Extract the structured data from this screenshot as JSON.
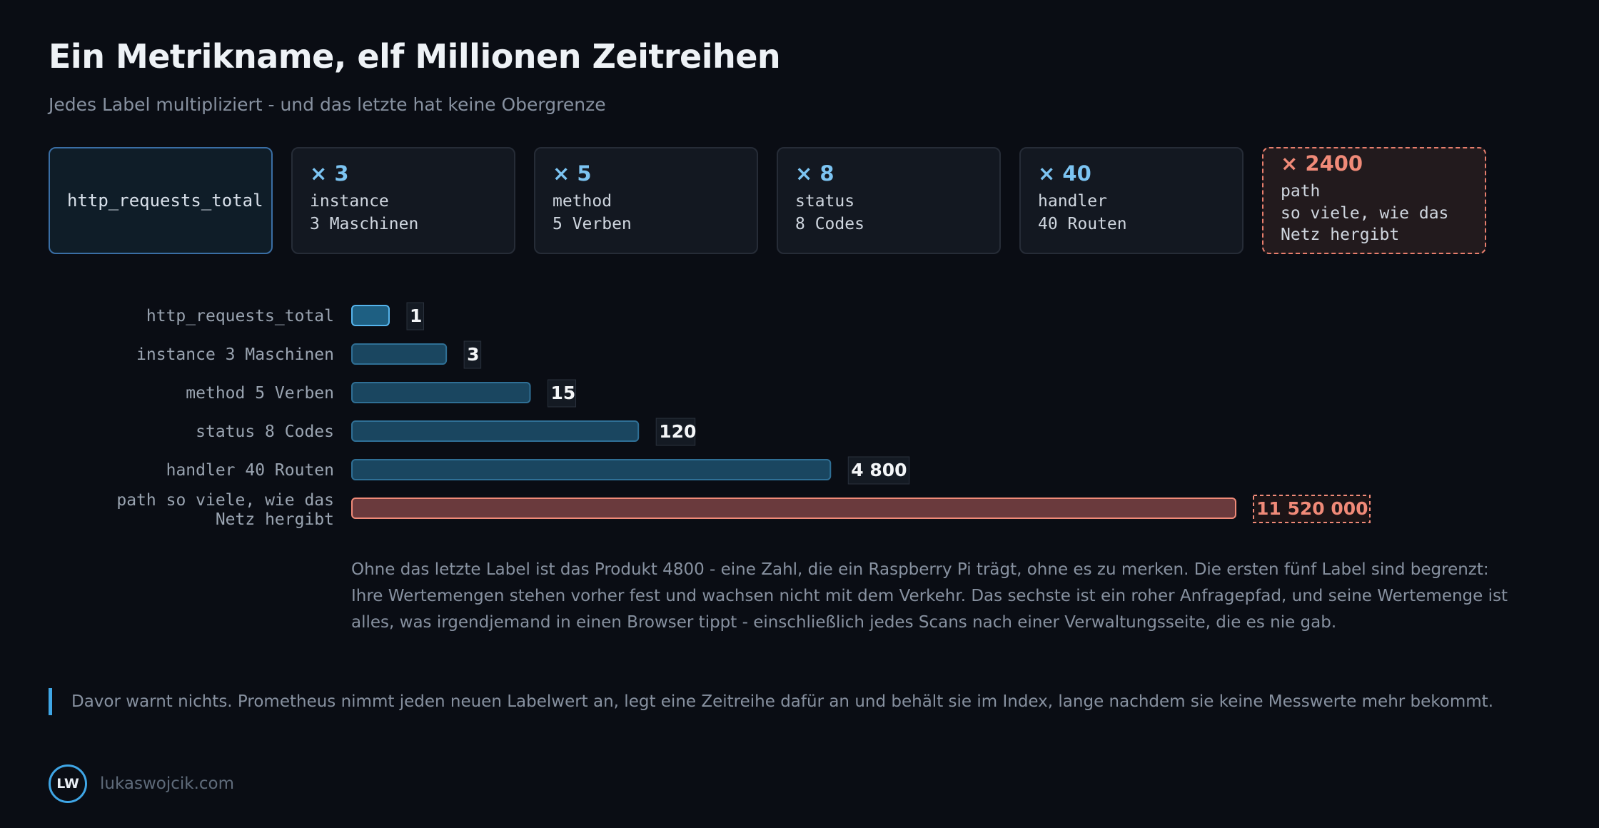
{
  "header": {
    "title": "Ein Metrikname, elf Millionen Zeitreihen",
    "subtitle": "Jedes Label multipliziert - und das letzte hat keine Obergrenze"
  },
  "cards": {
    "metric": {
      "name": "http_requests_total"
    },
    "labels": [
      {
        "multiplier": "× 3",
        "label": "instance",
        "desc": "3 Maschinen"
      },
      {
        "multiplier": "× 5",
        "label": "method",
        "desc": "5 Verben"
      },
      {
        "multiplier": "× 8",
        "label": "status",
        "desc": "8 Codes"
      },
      {
        "multiplier": "× 40",
        "label": "handler",
        "desc": "40 Routen"
      },
      {
        "multiplier": "× 2400",
        "label": "path",
        "desc": "so viele, wie das Netz hergibt",
        "unbounded": true
      }
    ]
  },
  "chart_data": {
    "type": "bar",
    "orientation": "horizontal",
    "scale": "log",
    "title": "",
    "xlabel": "",
    "ylabel": "",
    "grid": false,
    "categories": [
      "http_requests_total",
      "instance 3 Maschinen",
      "method 5 Verben",
      "status 8 Codes",
      "handler 40 Routen",
      "path so viele, wie das Netz hergibt"
    ],
    "values": [
      1,
      3,
      15,
      120,
      4800,
      11520000
    ],
    "value_labels": [
      "1",
      "3",
      "15",
      "120",
      "4 800",
      "11 520 000"
    ],
    "highlight_last": true,
    "colors": {
      "first_fill": "#1e5f82",
      "first_stroke": "#56b4ec",
      "bar_fill": "#1a4660",
      "bar_stroke": "#2f6f95",
      "danger_fill": "#6a3a3d",
      "danger_stroke": "#f08a78"
    }
  },
  "explanation": "Ohne das letzte Label ist das Produkt 4800 - eine Zahl, die ein Raspberry Pi trägt, ohne es zu merken. Die ersten fünf Label sind begrenzt: Ihre Wertemengen stehen vorher fest und wachsen nicht mit dem Verkehr. Das sechste ist ein roher Anfragepfad, und seine Wertemenge ist alles, was irgendjemand in einen Browser tippt - einschließlich jedes Scans nach einer Verwaltungsseite, die es nie gab.",
  "callout": "Davor warnt nichts. Prometheus nimmt jeden neuen Labelwert an, legt eine Zeitreihe dafür an und behält sie im Index, lange nachdem sie keine Messwerte mehr bekommt.",
  "footer": {
    "logo_text": "LW",
    "url": "lukaswojcik.com"
  }
}
